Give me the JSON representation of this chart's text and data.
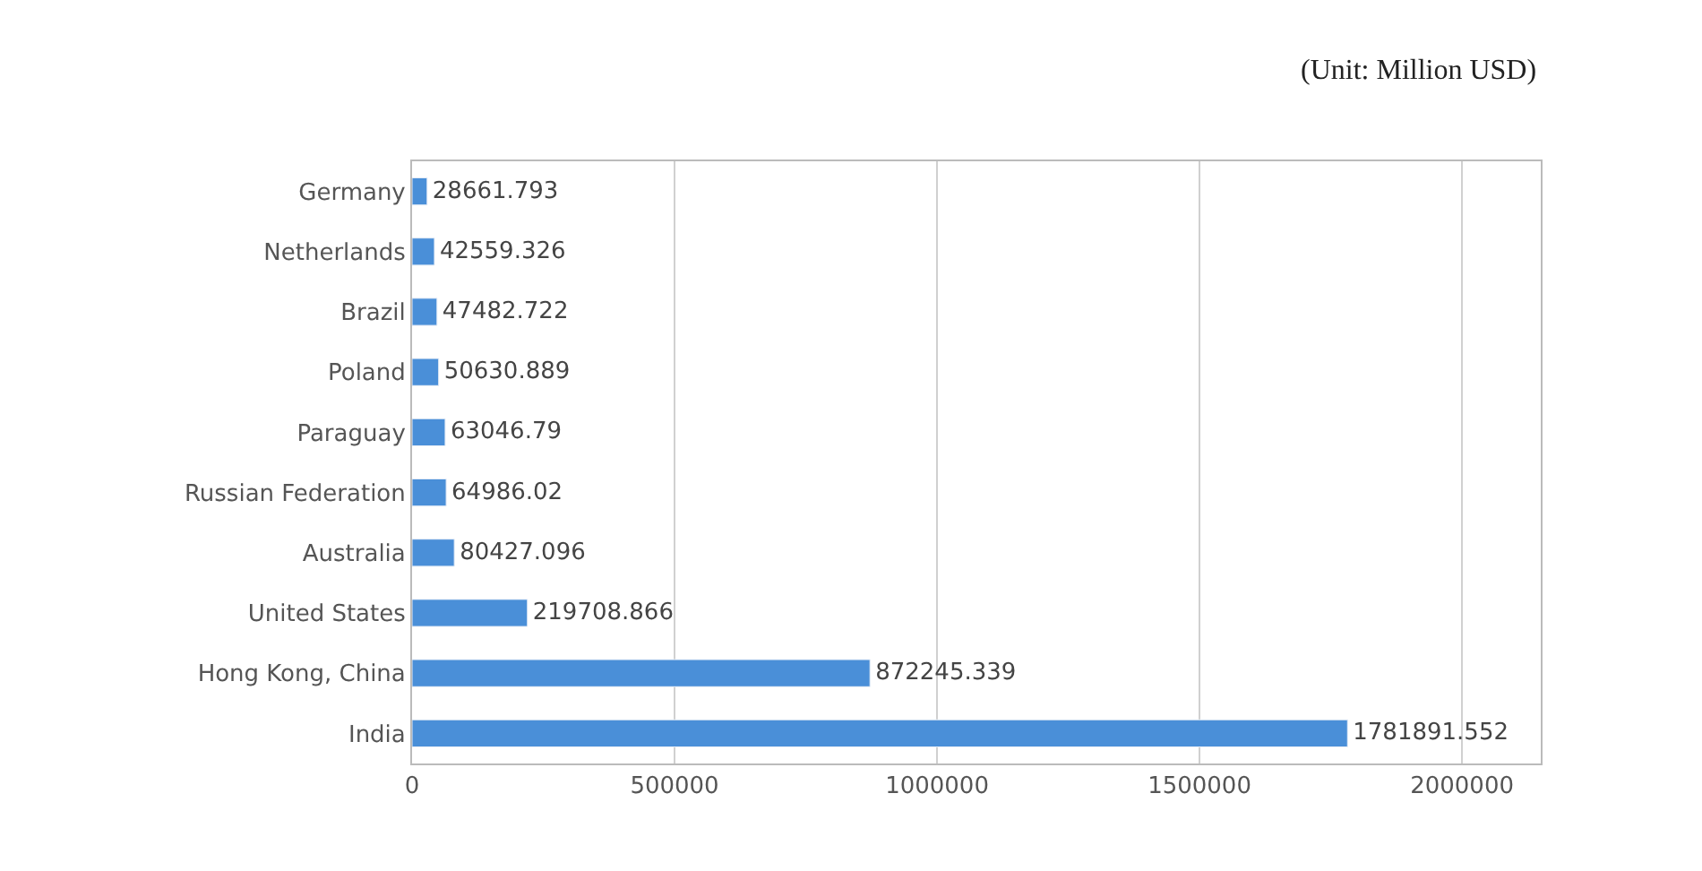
{
  "chart_data": {
    "type": "bar",
    "orientation": "horizontal",
    "categories": [
      "Germany",
      "Netherlands",
      "Brazil",
      "Poland",
      "Paraguay",
      "Russian Federation",
      "Australia",
      "United States",
      "Hong Kong, China",
      "India"
    ],
    "values": [
      28661.793,
      42559.326,
      47482.722,
      50630.889,
      63046.79,
      64986.02,
      80427.096,
      219708.866,
      872245.339,
      1781891.552
    ],
    "color": "#4a8fd8",
    "xlim": [
      0,
      2150000
    ],
    "xticks": [
      0,
      500000,
      1000000,
      1500000,
      2000000
    ],
    "grid": "x",
    "data_labels": true,
    "annotations": [
      "(Unit: Million USD)"
    ]
  }
}
